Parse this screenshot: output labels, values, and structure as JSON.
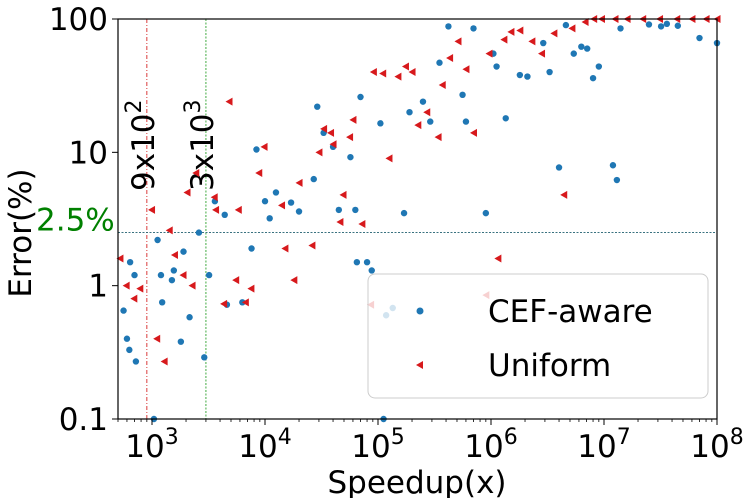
{
  "chart_data": {
    "type": "scatter",
    "xscale": "log",
    "yscale": "log",
    "xlim": [
      500,
      100000000
    ],
    "ylim": [
      0.1,
      100
    ],
    "xlabel": "Speedup(x)",
    "ylabel": "Error(%)",
    "x_ticks": [
      {
        "value": 1000,
        "base": "10",
        "exp": "3"
      },
      {
        "value": 10000,
        "base": "10",
        "exp": "4"
      },
      {
        "value": 100000,
        "base": "10",
        "exp": "5"
      },
      {
        "value": 1000000,
        "base": "10",
        "exp": "6"
      },
      {
        "value": 10000000,
        "base": "10",
        "exp": "7"
      },
      {
        "value": 100000000,
        "base": "10",
        "exp": "8"
      }
    ],
    "y_ticks": [
      {
        "value": 0.1,
        "label": "0.1"
      },
      {
        "value": 1,
        "label": "1"
      },
      {
        "value": 10,
        "label": "10"
      },
      {
        "value": 100,
        "label": "100"
      }
    ],
    "reference_lines": [
      {
        "orientation": "vertical",
        "value": 900,
        "label_base": "9x10",
        "label_exp": "2",
        "color": "#d62728",
        "style": "dashdot"
      },
      {
        "orientation": "vertical",
        "value": 3000,
        "label_base": "3x10",
        "label_exp": "3",
        "color": "#2ca02c",
        "style": "dashed"
      },
      {
        "orientation": "horizontal",
        "value": 2.5,
        "label": "2.5%",
        "color": "#1f5f6f",
        "label_color": "#008000",
        "style": "dashed"
      }
    ],
    "legend": {
      "position": "lower-right"
    },
    "series": [
      {
        "name": "CEF-aware",
        "marker": "circle",
        "color": "#1f77b4",
        "points": [
          [
            560,
            0.65
          ],
          [
            600,
            0.4
          ],
          [
            630,
            0.33
          ],
          [
            700,
            1.2
          ],
          [
            720,
            0.27
          ],
          [
            640,
            1.5
          ],
          [
            1040,
            0.1
          ],
          [
            1120,
            2.2
          ],
          [
            1200,
            1.2
          ],
          [
            1230,
            0.75
          ],
          [
            1500,
            1.1
          ],
          [
            1560,
            1.3
          ],
          [
            1800,
            0.38
          ],
          [
            1900,
            1.8
          ],
          [
            2150,
            0.58
          ],
          [
            2600,
            2.5
          ],
          [
            2900,
            0.29
          ],
          [
            3200,
            1.2
          ],
          [
            3600,
            4.3
          ],
          [
            4400,
            3.4
          ],
          [
            4600,
            0.72
          ],
          [
            6300,
            0.75
          ],
          [
            7600,
            1.9
          ],
          [
            8400,
            10.5
          ],
          [
            10000,
            4.3
          ],
          [
            11000,
            3.2
          ],
          [
            12500,
            5.0
          ],
          [
            17000,
            4.2
          ],
          [
            20000,
            3.6
          ],
          [
            27000,
            6.3
          ],
          [
            29000,
            22.0
          ],
          [
            33000,
            14.0
          ],
          [
            40000,
            11.0
          ],
          [
            45000,
            3.7
          ],
          [
            57000,
            9.2
          ],
          [
            63000,
            3.7
          ],
          [
            65000,
            1.5
          ],
          [
            70000,
            26.0
          ],
          [
            80000,
            1.5
          ],
          [
            88000,
            1.3
          ],
          [
            105000,
            16.5
          ],
          [
            112000,
            0.1
          ],
          [
            118000,
            0.6
          ],
          [
            135000,
            0.68
          ],
          [
            170000,
            3.5
          ],
          [
            190000,
            20.0
          ],
          [
            250000,
            24.0
          ],
          [
            290000,
            17.0
          ],
          [
            350000,
            47.0
          ],
          [
            420000,
            88.0
          ],
          [
            560000,
            27.0
          ],
          [
            600000,
            17.0
          ],
          [
            700000,
            85.0
          ],
          [
            900000,
            3.5
          ],
          [
            1050000,
            55.0
          ],
          [
            1120000,
            44.0
          ],
          [
            1350000,
            18.0
          ],
          [
            1800000,
            38.0
          ],
          [
            2100000,
            37.0
          ],
          [
            2900000,
            66.0
          ],
          [
            3300000,
            40.0
          ],
          [
            4000000,
            7.7
          ],
          [
            4600000,
            90.0
          ],
          [
            5400000,
            55.0
          ],
          [
            6300000,
            62.0
          ],
          [
            7100000,
            60.0
          ],
          [
            8000000,
            36.0
          ],
          [
            9000000,
            44.0
          ],
          [
            12000000,
            8.0
          ],
          [
            13000000,
            6.2
          ],
          [
            14000000,
            85.0
          ],
          [
            25000000,
            91.0
          ],
          [
            32000000,
            88.0
          ],
          [
            36000000,
            92.0
          ],
          [
            45000000,
            89.0
          ],
          [
            70000000,
            72.0
          ],
          [
            100000000,
            66.0
          ]
        ]
      },
      {
        "name": "Uniform",
        "marker": "triangle-left",
        "color": "#d7191c",
        "points": [
          [
            520,
            1.6
          ],
          [
            590,
            1.0
          ],
          [
            690,
            0.8
          ],
          [
            780,
            0.95
          ],
          [
            990,
            3.7
          ],
          [
            1100,
            0.4
          ],
          [
            1280,
            0.27
          ],
          [
            1420,
            2.6
          ],
          [
            1580,
            1.7
          ],
          [
            1880,
            1.2
          ],
          [
            2040,
            5.0
          ],
          [
            2260,
            1.0
          ],
          [
            2440,
            7.0
          ],
          [
            3550,
            4.6
          ],
          [
            3650,
            3.7
          ],
          [
            4300,
            0.73
          ],
          [
            4800,
            24.0
          ],
          [
            5500,
            1.1
          ],
          [
            5800,
            3.7
          ],
          [
            6700,
            0.75
          ],
          [
            7500,
            0.95
          ],
          [
            8800,
            7.0
          ],
          [
            9800,
            11.0
          ],
          [
            14000,
            4.0
          ],
          [
            15000,
            1.9
          ],
          [
            18000,
            1.1
          ],
          [
            20000,
            5.9
          ],
          [
            26000,
            2.0
          ],
          [
            30000,
            10.0
          ],
          [
            33000,
            15.0
          ],
          [
            38000,
            14.0
          ],
          [
            40000,
            11.5
          ],
          [
            46000,
            3.0
          ],
          [
            49000,
            4.8
          ],
          [
            56000,
            13.0
          ],
          [
            60000,
            17.5
          ],
          [
            72000,
            2.9
          ],
          [
            86000,
            0.72
          ],
          [
            91000,
            40.0
          ],
          [
            110000,
            39.0
          ],
          [
            125000,
            9.0
          ],
          [
            150000,
            37.0
          ],
          [
            175000,
            44.0
          ],
          [
            200000,
            40.0
          ],
          [
            225000,
            16.0
          ],
          [
            270000,
            20.0
          ],
          [
            340000,
            13.0
          ],
          [
            370000,
            32.0
          ],
          [
            430000,
            51.0
          ],
          [
            510000,
            68.0
          ],
          [
            600000,
            42.0
          ],
          [
            700000,
            14.0
          ],
          [
            900000,
            0.85
          ],
          [
            960000,
            55.0
          ],
          [
            1150000,
            1.6
          ],
          [
            1300000,
            70.0
          ],
          [
            1500000,
            80.0
          ],
          [
            1800000,
            82.0
          ],
          [
            2300000,
            68.0
          ],
          [
            2800000,
            55.0
          ],
          [
            3600000,
            78.0
          ],
          [
            4400000,
            4.8
          ],
          [
            5200000,
            85.0
          ],
          [
            6800000,
            95.0
          ],
          [
            8100000,
            100.0
          ],
          [
            9500000,
            100.0
          ],
          [
            12500000,
            100.0
          ],
          [
            16000000,
            100.0
          ],
          [
            22000000,
            100.0
          ],
          [
            31000000,
            100.0
          ],
          [
            44000000,
            100.0
          ],
          [
            60000000,
            100.0
          ],
          [
            80000000,
            100.0
          ],
          [
            100000000,
            100.0
          ]
        ]
      }
    ]
  }
}
